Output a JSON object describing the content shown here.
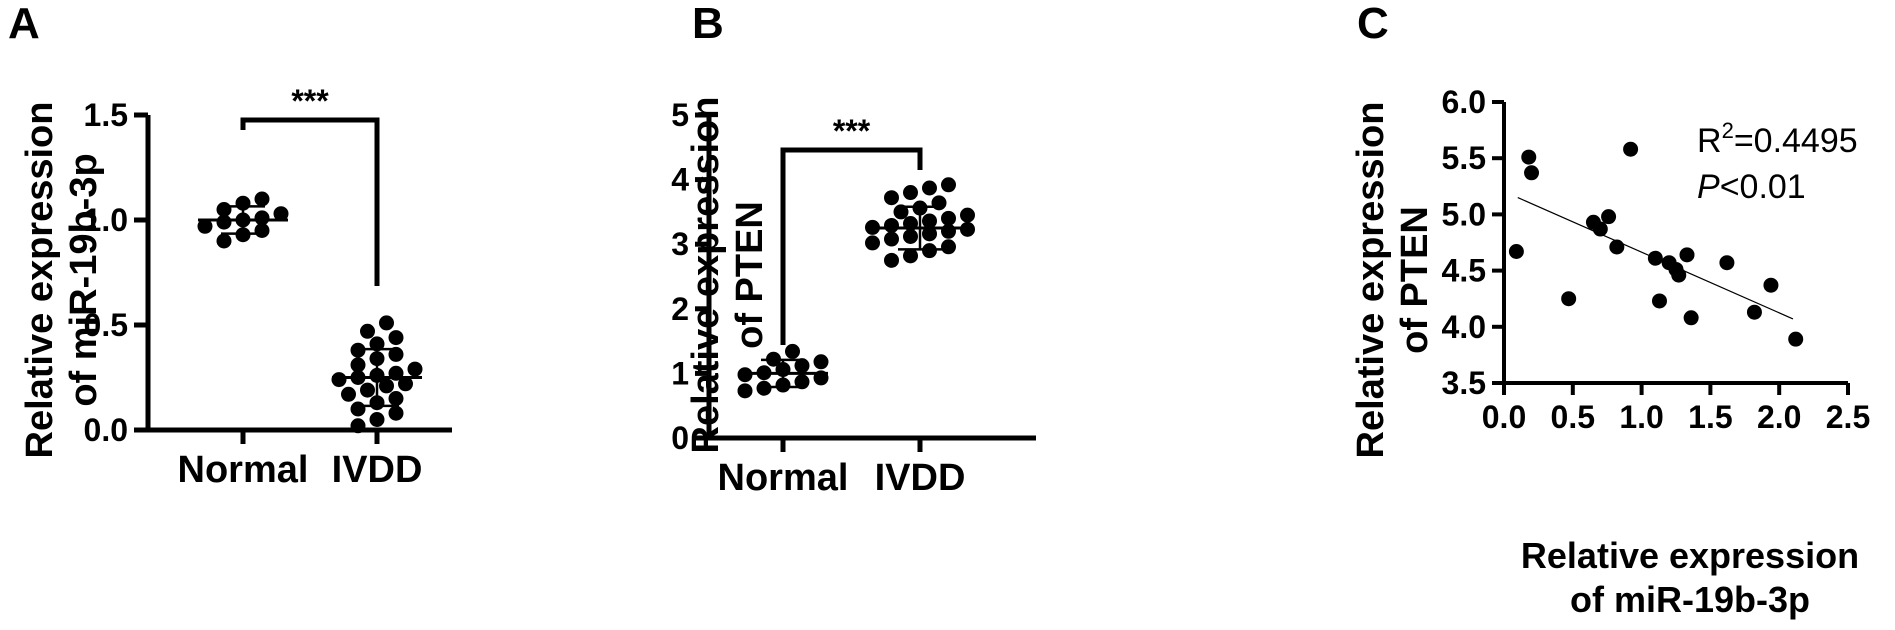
{
  "panels": {
    "a": "A",
    "b": "B",
    "c": "C"
  },
  "chart_data": [
    {
      "type": "scatter",
      "ylabel_line1": "Relative expression",
      "ylabel_line2": "of miR-19b-3p",
      "categories": [
        "Normal",
        "IVDD"
      ],
      "ylim": [
        0,
        1.5
      ],
      "yticks": [
        "0.0",
        "0.5",
        "1.0",
        "1.5"
      ],
      "significance": "***",
      "groups": [
        {
          "category": "Normal",
          "mean": 1.0,
          "sd": 0.065,
          "values": [
            0.9,
            0.93,
            0.95,
            0.97,
            0.99,
            1.0,
            1.01,
            1.03,
            1.05,
            1.08,
            1.1
          ]
        },
        {
          "category": "IVDD",
          "mean": 0.25,
          "sd": 0.135,
          "values": [
            0.02,
            0.05,
            0.08,
            0.1,
            0.13,
            0.15,
            0.17,
            0.19,
            0.21,
            0.22,
            0.24,
            0.25,
            0.26,
            0.27,
            0.29,
            0.31,
            0.34,
            0.36,
            0.38,
            0.41,
            0.44,
            0.47,
            0.51
          ]
        }
      ]
    },
    {
      "type": "scatter",
      "ylabel_line1": "Relative expression",
      "ylabel_line2": "of PTEN",
      "categories": [
        "Normal",
        "IVDD"
      ],
      "ylim": [
        0,
        5
      ],
      "yticks": [
        "0",
        "1",
        "2",
        "3",
        "4",
        "5"
      ],
      "significance": "***",
      "groups": [
        {
          "category": "Normal",
          "mean": 1.0,
          "sd": 0.21,
          "values": [
            0.73,
            0.77,
            0.82,
            0.87,
            0.93,
            0.98,
            1.01,
            1.06,
            1.12,
            1.18,
            1.22,
            1.34
          ]
        },
        {
          "category": "IVDD",
          "mean": 3.25,
          "sd": 0.33,
          "values": [
            2.75,
            2.82,
            2.9,
            2.96,
            3.02,
            3.08,
            3.12,
            3.16,
            3.2,
            3.23,
            3.26,
            3.29,
            3.32,
            3.36,
            3.4,
            3.45,
            3.5,
            3.56,
            3.64,
            3.72,
            3.8,
            3.87,
            3.92
          ]
        }
      ]
    },
    {
      "type": "scatter",
      "xlabel_line1": "Relative expression",
      "xlabel_line2": "of miR-19b-3p",
      "ylabel_line1": "Relative expression",
      "ylabel_line2": "of PTEN",
      "xlim": [
        0,
        2.5
      ],
      "ylim": [
        3.5,
        6.0
      ],
      "xticks": [
        "0.0",
        "0.5",
        "1.0",
        "1.5",
        "2.0",
        "2.5"
      ],
      "yticks": [
        "3.5",
        "4.0",
        "4.5",
        "5.0",
        "5.5",
        "6.0"
      ],
      "r2_label": "R",
      "r2_sup": "2",
      "r2_value": "=0.4495",
      "p_label": "P",
      "p_value": "<0.01",
      "trendline": {
        "x": [
          0.1,
          2.1
        ],
        "y": [
          5.15,
          4.07
        ]
      },
      "x": [
        0.09,
        0.18,
        0.2,
        0.47,
        0.65,
        0.7,
        0.76,
        0.82,
        0.92,
        1.1,
        1.13,
        1.2,
        1.25,
        1.27,
        1.33,
        1.36,
        1.62,
        1.82,
        1.94,
        2.12
      ],
      "y": [
        4.67,
        5.51,
        5.37,
        4.25,
        4.93,
        4.87,
        4.98,
        4.71,
        5.58,
        4.61,
        4.23,
        4.57,
        4.51,
        4.46,
        4.64,
        4.08,
        4.57,
        4.13,
        4.37,
        3.89
      ]
    }
  ]
}
